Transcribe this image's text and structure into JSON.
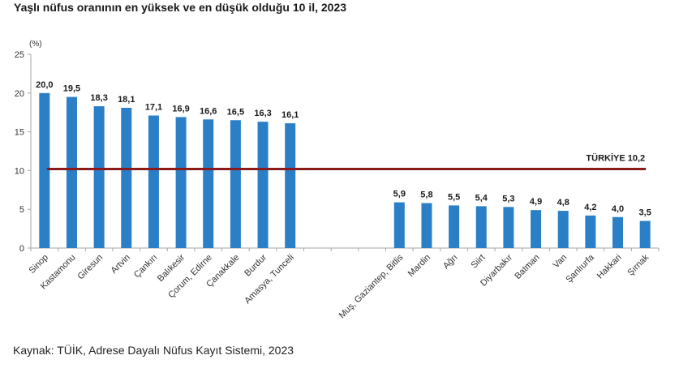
{
  "chart_data": {
    "type": "bar",
    "title": "Yaşlı nüfus oranının en yüksek ve en düşük olduğu 10 il, 2023",
    "ylabel": "(%)",
    "xlabel": "",
    "ylim": [
      0,
      25
    ],
    "yticks": [
      0,
      5,
      10,
      15,
      20,
      25
    ],
    "grid": false,
    "categories": [
      "Sinop",
      "Kastamonu",
      "Giresun",
      "Artvin",
      "Çankırı",
      "Balıkesir",
      "Çorum, Edirne",
      "Çanakkale",
      "Burdur",
      "Amasya, Tunceli",
      "",
      "",
      "",
      "Muş, Gaziantep, Bitlis",
      "Mardin",
      "Ağrı",
      "Siirt",
      "Diyarbakır",
      "Batman",
      "Van",
      "Şanlıurfa",
      "Hakkari",
      "Şırnak"
    ],
    "values": [
      20.0,
      19.5,
      18.3,
      18.1,
      17.1,
      16.9,
      16.6,
      16.5,
      16.3,
      16.1,
      null,
      null,
      null,
      5.9,
      5.8,
      5.5,
      5.4,
      5.3,
      4.9,
      4.8,
      4.2,
      4.0,
      3.5
    ],
    "value_labels": [
      "20,0",
      "19,5",
      "18,3",
      "18,1",
      "17,1",
      "16,9",
      "16,6",
      "16,5",
      "16,3",
      "16,1",
      "",
      "",
      "",
      "5,9",
      "5,8",
      "5,5",
      "5,4",
      "5,3",
      "4,9",
      "4,8",
      "4,2",
      "4,0",
      "3,5"
    ],
    "bar_color": "#2a7fc7",
    "reference_line": {
      "label": "TÜRKİYE  10,2",
      "value": 10.2,
      "color": "#8b1a1a"
    }
  },
  "source": "Kaynak: TÜİK, Adrese Dayalı Nüfus Kayıt Sistemi, 2023"
}
